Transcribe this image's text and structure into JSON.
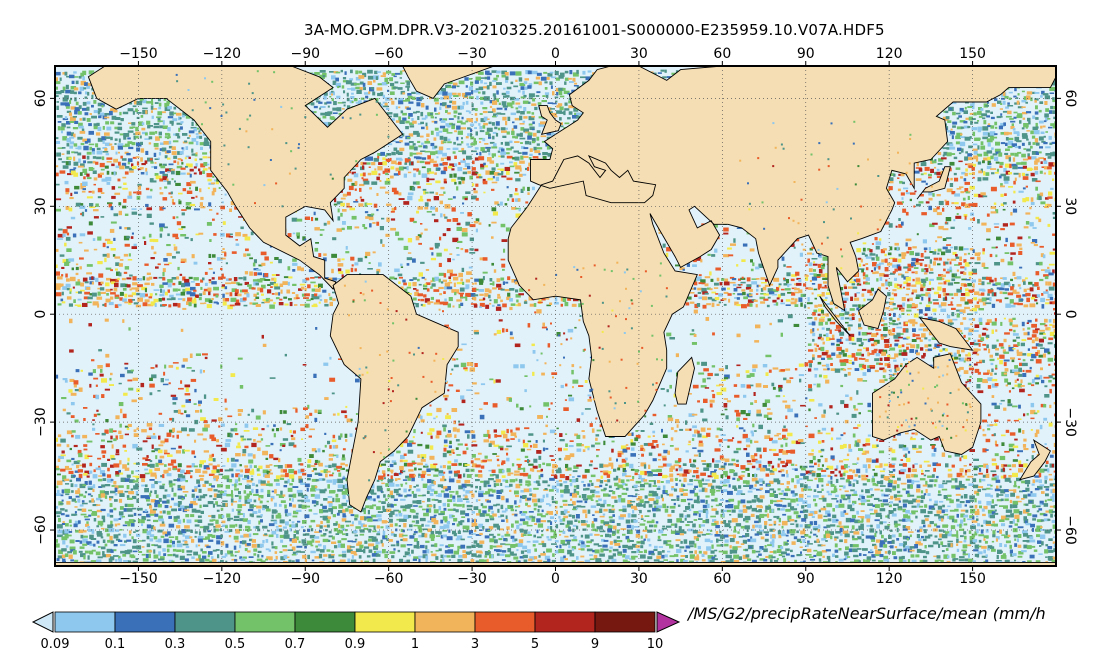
{
  "title": "3A-MO.GPM.DPR.V3-20210325.20161001-S000000-E235959.10.V07A.HDF5",
  "variable_label": "/MS/G2/precipRateNearSurface/mean (mm/h",
  "lon_ticks": [
    -150,
    -120,
    -90,
    -60,
    -30,
    0,
    30,
    60,
    90,
    120,
    150
  ],
  "lat_ticks": [
    60,
    30,
    0,
    -30,
    -60
  ],
  "colorbar": {
    "labels": [
      "0.09",
      "0.1",
      "0.3",
      "0.5",
      "0.7",
      "0.9",
      "1",
      "3",
      "5",
      "9",
      "10"
    ],
    "colors": [
      "#8ec8ee",
      "#3a70b8",
      "#4f9488",
      "#73c26a",
      "#3d8a3a",
      "#f2e94c",
      "#f2b45a",
      "#e85c2c",
      "#b2241e",
      "#761810"
    ],
    "under_color": "#cfe8f7",
    "over_color": "#b2329f"
  },
  "colors": {
    "land": "#f5deb3",
    "ocean_dry": "#e2f2fa",
    "coastline": "#000000"
  }
}
